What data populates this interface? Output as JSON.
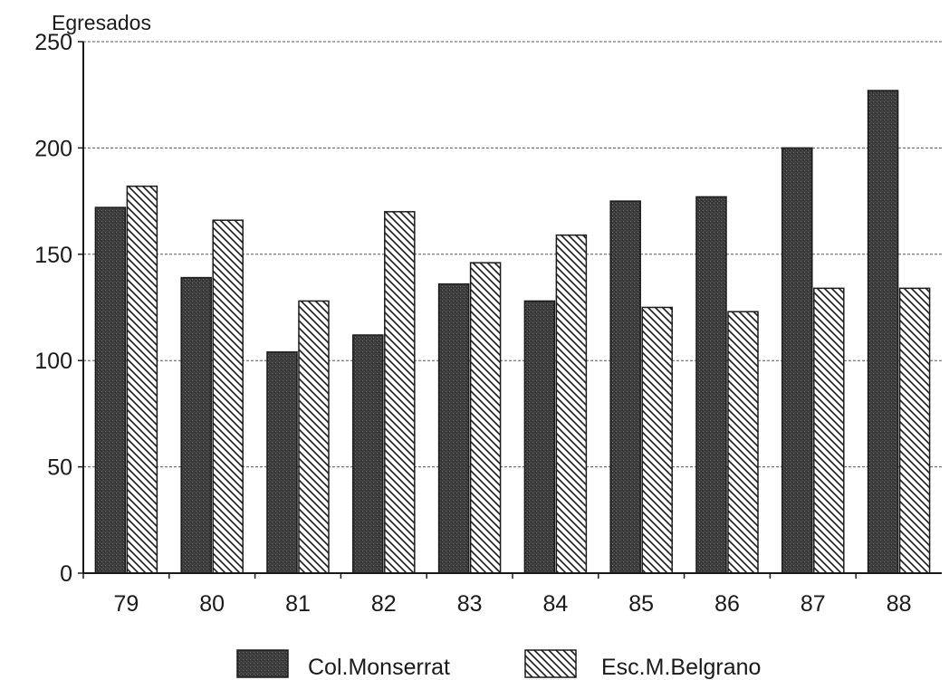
{
  "chart_data": {
    "type": "bar",
    "title": "",
    "ylabel": "Egresados",
    "xlabel": "",
    "categories": [
      "79",
      "80",
      "81",
      "82",
      "83",
      "84",
      "85",
      "86",
      "87",
      "88"
    ],
    "series": [
      {
        "name": "Col.Monserrat",
        "pattern": "dark-solid",
        "color": "#3a3a3a",
        "values": [
          172,
          139,
          104,
          112,
          136,
          128,
          175,
          177,
          200,
          227
        ]
      },
      {
        "name": "Esc.M.Belgrano",
        "pattern": "diagonal-hatch",
        "color": "#1a1a1a",
        "values": [
          182,
          166,
          128,
          170,
          146,
          159,
          125,
          123,
          134,
          134
        ]
      }
    ],
    "ylim": [
      0,
      250
    ],
    "yticks": [
      0,
      50,
      100,
      150,
      200,
      250
    ],
    "grid": true,
    "legend_position": "bottom-center"
  }
}
